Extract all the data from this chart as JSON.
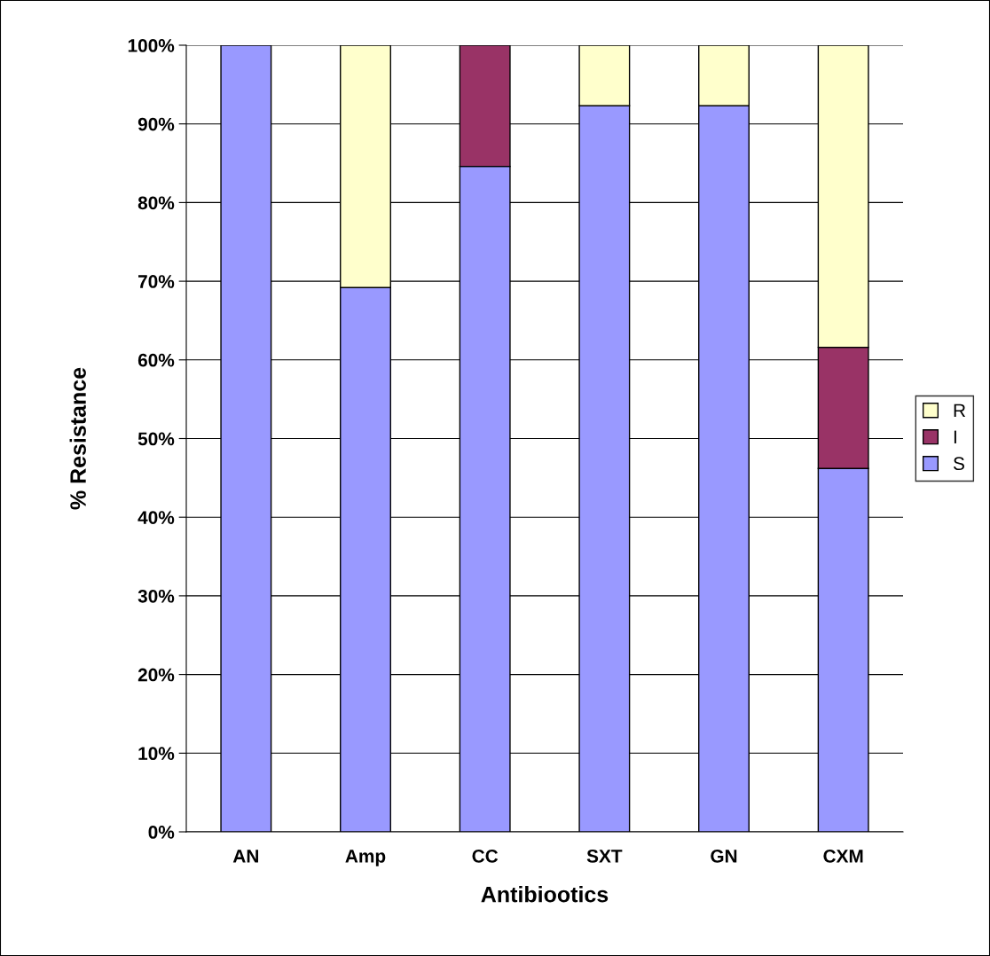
{
  "chart_data": {
    "type": "bar",
    "stacked": true,
    "xlabel": "Antibiootics",
    "ylabel": "% Resistance",
    "categories": [
      "AN",
      "Amp",
      "CC",
      "SXT",
      "GN",
      "CXM"
    ],
    "series": [
      {
        "name": "S",
        "color": "#9999ff",
        "values": [
          100,
          69.2,
          84.6,
          92.3,
          92.3,
          46.2
        ]
      },
      {
        "name": "I",
        "color": "#993366",
        "values": [
          null,
          null,
          15.4,
          null,
          null,
          15.4
        ]
      },
      {
        "name": "R",
        "color": "#ffffcc",
        "values": [
          null,
          30.8,
          null,
          7.7,
          7.7,
          38.4
        ]
      }
    ],
    "ylim": [
      0,
      100
    ],
    "yticks": [
      {
        "value": 0,
        "label": "0%"
      },
      {
        "value": 10,
        "label": "10%"
      },
      {
        "value": 20,
        "label": "20%"
      },
      {
        "value": 30,
        "label": "30%"
      },
      {
        "value": 40,
        "label": "40%"
      },
      {
        "value": 50,
        "label": "50%"
      },
      {
        "value": 60,
        "label": "60%"
      },
      {
        "value": 70,
        "label": "70%"
      },
      {
        "value": 80,
        "label": "80%"
      },
      {
        "value": 90,
        "label": "90%"
      },
      {
        "value": 100,
        "label": "100%"
      }
    ],
    "grid": "y",
    "legend": "right"
  }
}
